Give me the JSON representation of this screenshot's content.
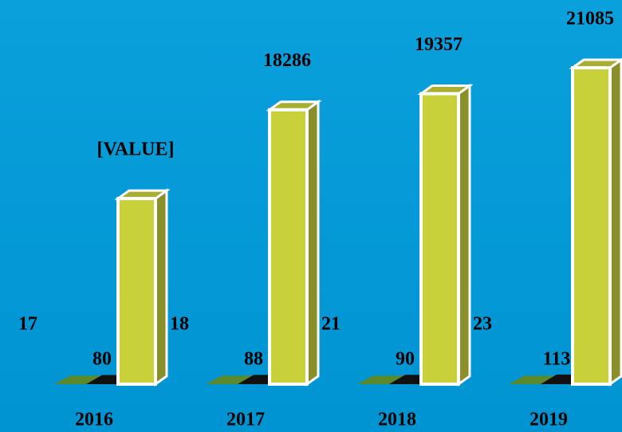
{
  "chart_data": {
    "type": "bar3d",
    "categories": [
      "2016",
      "2017",
      "2018",
      "2019"
    ],
    "series": [
      {
        "color": "#5b8a2c",
        "values": [
          17,
          18,
          21,
          23
        ]
      },
      {
        "color": "#111111",
        "values": [
          80,
          88,
          90,
          113
        ]
      },
      {
        "color": "#c8d13a",
        "values": [
          12370,
          18286,
          19357,
          21085
        ],
        "value_labels": [
          "[VALUE]",
          "18286",
          "19357",
          "21085"
        ]
      }
    ]
  }
}
